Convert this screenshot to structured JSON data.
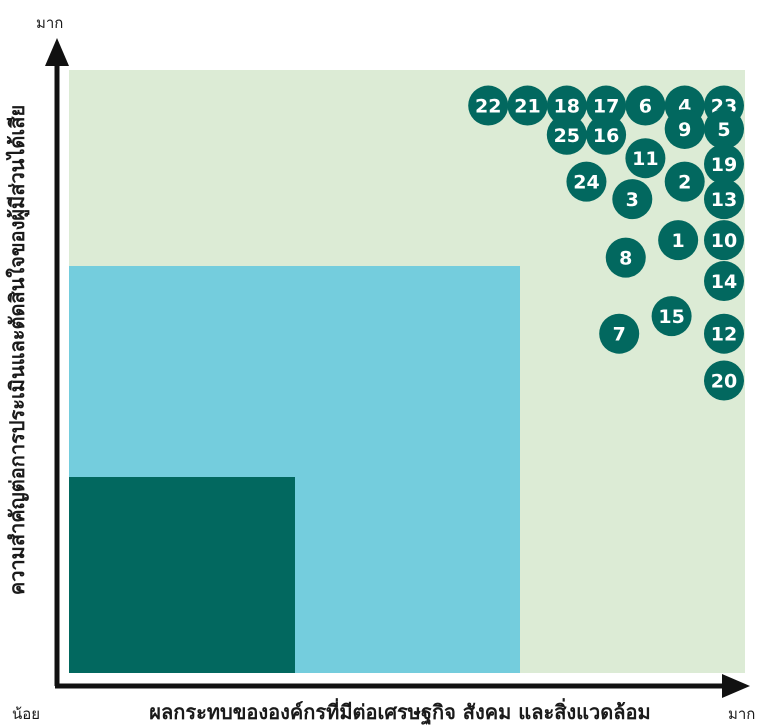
{
  "chart_data": {
    "type": "scatter",
    "xlabel": "ผลกระทบขององค์กรที่มีต่อเศรษฐกิจ สังคม และสิ่งแวดล้อม",
    "ylabel": "ความสำคัญต่อการประเมินและตัดสินใจของผู้มีส่วนได้เสีย",
    "x_low_label": "น้อย",
    "x_high_label": "มาก",
    "y_high_label": "มาก",
    "colors": {
      "background_zone": "#dcebd5",
      "middle_zone": "#74cddd",
      "low_zone": "#02685f",
      "bubble": "#02685f",
      "axis": "#111111"
    },
    "points": [
      {
        "id": "22",
        "x": 0.64,
        "y": 0.97
      },
      {
        "id": "21",
        "x": 0.7,
        "y": 0.97
      },
      {
        "id": "18",
        "x": 0.76,
        "y": 0.97
      },
      {
        "id": "17",
        "x": 0.82,
        "y": 0.97
      },
      {
        "id": "6",
        "x": 0.88,
        "y": 0.97
      },
      {
        "id": "4",
        "x": 0.94,
        "y": 0.97
      },
      {
        "id": "23",
        "x": 1.0,
        "y": 0.97
      },
      {
        "id": "25",
        "x": 0.76,
        "y": 0.92
      },
      {
        "id": "16",
        "x": 0.82,
        "y": 0.92
      },
      {
        "id": "9",
        "x": 0.94,
        "y": 0.93
      },
      {
        "id": "5",
        "x": 1.0,
        "y": 0.93
      },
      {
        "id": "11",
        "x": 0.88,
        "y": 0.88
      },
      {
        "id": "19",
        "x": 1.0,
        "y": 0.87
      },
      {
        "id": "2",
        "x": 0.94,
        "y": 0.84
      },
      {
        "id": "24",
        "x": 0.79,
        "y": 0.84
      },
      {
        "id": "3",
        "x": 0.86,
        "y": 0.81
      },
      {
        "id": "13",
        "x": 1.0,
        "y": 0.81
      },
      {
        "id": "1",
        "x": 0.93,
        "y": 0.74
      },
      {
        "id": "10",
        "x": 1.0,
        "y": 0.74
      },
      {
        "id": "8",
        "x": 0.85,
        "y": 0.71
      },
      {
        "id": "14",
        "x": 1.0,
        "y": 0.67
      },
      {
        "id": "15",
        "x": 0.92,
        "y": 0.61
      },
      {
        "id": "7",
        "x": 0.84,
        "y": 0.58
      },
      {
        "id": "12",
        "x": 1.0,
        "y": 0.58
      },
      {
        "id": "20",
        "x": 1.0,
        "y": 0.5
      }
    ]
  }
}
